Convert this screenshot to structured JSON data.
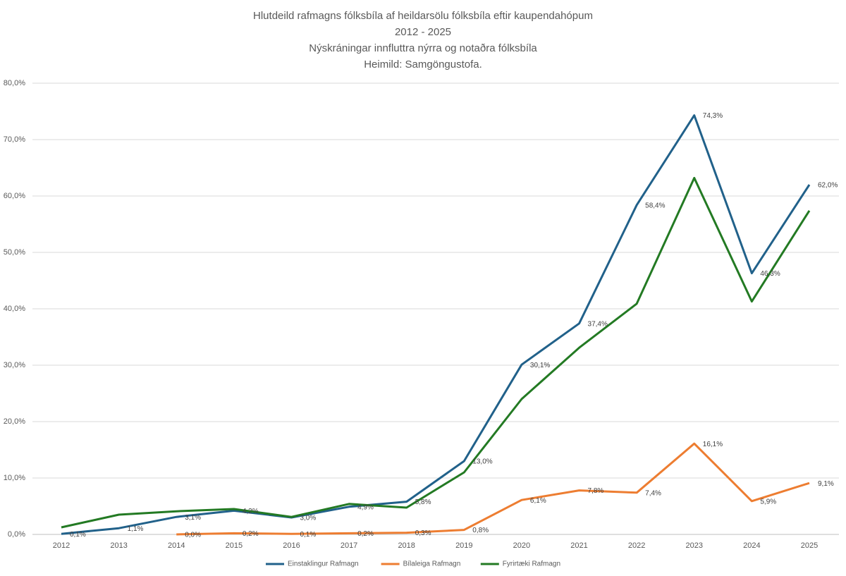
{
  "chart_data": {
    "type": "line",
    "title_lines": [
      "Hlutdeild rafmagns fólksbíla af heildarsölu fólksbíla eftir kaupendahópum",
      "2012 - 2025",
      "Nýskráningar innfluttra nýrra og notaðra fólksbíla",
      "Heimild: Samgöngustofa."
    ],
    "categories": [
      "2012",
      "2013",
      "2014",
      "2015",
      "2016",
      "2017",
      "2018",
      "2019",
      "2020",
      "2021",
      "2022",
      "2023",
      "2024",
      "2025"
    ],
    "ylim": [
      0,
      80
    ],
    "yticks": [
      {
        "value": 0,
        "label": "0,0%"
      },
      {
        "value": 10,
        "label": "10,0%"
      },
      {
        "value": 20,
        "label": "20,0%"
      },
      {
        "value": 30,
        "label": "30,0%"
      },
      {
        "value": 40,
        "label": "40,0%"
      },
      {
        "value": 50,
        "label": "50,0%"
      },
      {
        "value": 60,
        "label": "60,0%"
      },
      {
        "value": 70,
        "label": "70,0%"
      },
      {
        "value": 80,
        "label": "80,0%"
      }
    ],
    "grid": true,
    "legend": "bottom",
    "series": [
      {
        "name": "Einstaklingur Rafmagn",
        "color": "#21618a",
        "values": [
          0.1,
          1.1,
          3.1,
          4.2,
          3.0,
          4.9,
          5.8,
          13.0,
          30.1,
          37.4,
          58.4,
          74.3,
          46.3,
          62.0
        ],
        "value_labels": [
          "0,1%",
          "1,1%",
          "3,1%",
          "4,2%",
          "3,0%",
          "4,9%",
          "5,8%",
          "13,0%",
          "30,1%",
          "37,4%",
          "58,4%",
          "74,3%",
          "46,3%",
          "62,0%"
        ]
      },
      {
        "name": "Bílaleiga Rafmagn",
        "color": "#ed7d31",
        "values": [
          null,
          null,
          0.0,
          0.2,
          0.1,
          0.2,
          0.3,
          0.8,
          6.1,
          7.8,
          7.4,
          16.1,
          5.9,
          9.1
        ],
        "value_labels": [
          null,
          null,
          "0,0%",
          "0,2%",
          "0,1%",
          "0,2%",
          "0,3%",
          "0,8%",
          "6,1%",
          "7,8%",
          "7,4%",
          "16,1%",
          "5,9%",
          "9,1%"
        ]
      },
      {
        "name": "Fyrirtæki Rafmagn",
        "color": "#237a23",
        "values": [
          1.25,
          3.5,
          4.1,
          4.5,
          3.1,
          5.4,
          4.75,
          11.0,
          24.0,
          33.1,
          40.9,
          63.2,
          41.3,
          57.4
        ]
      }
    ]
  }
}
